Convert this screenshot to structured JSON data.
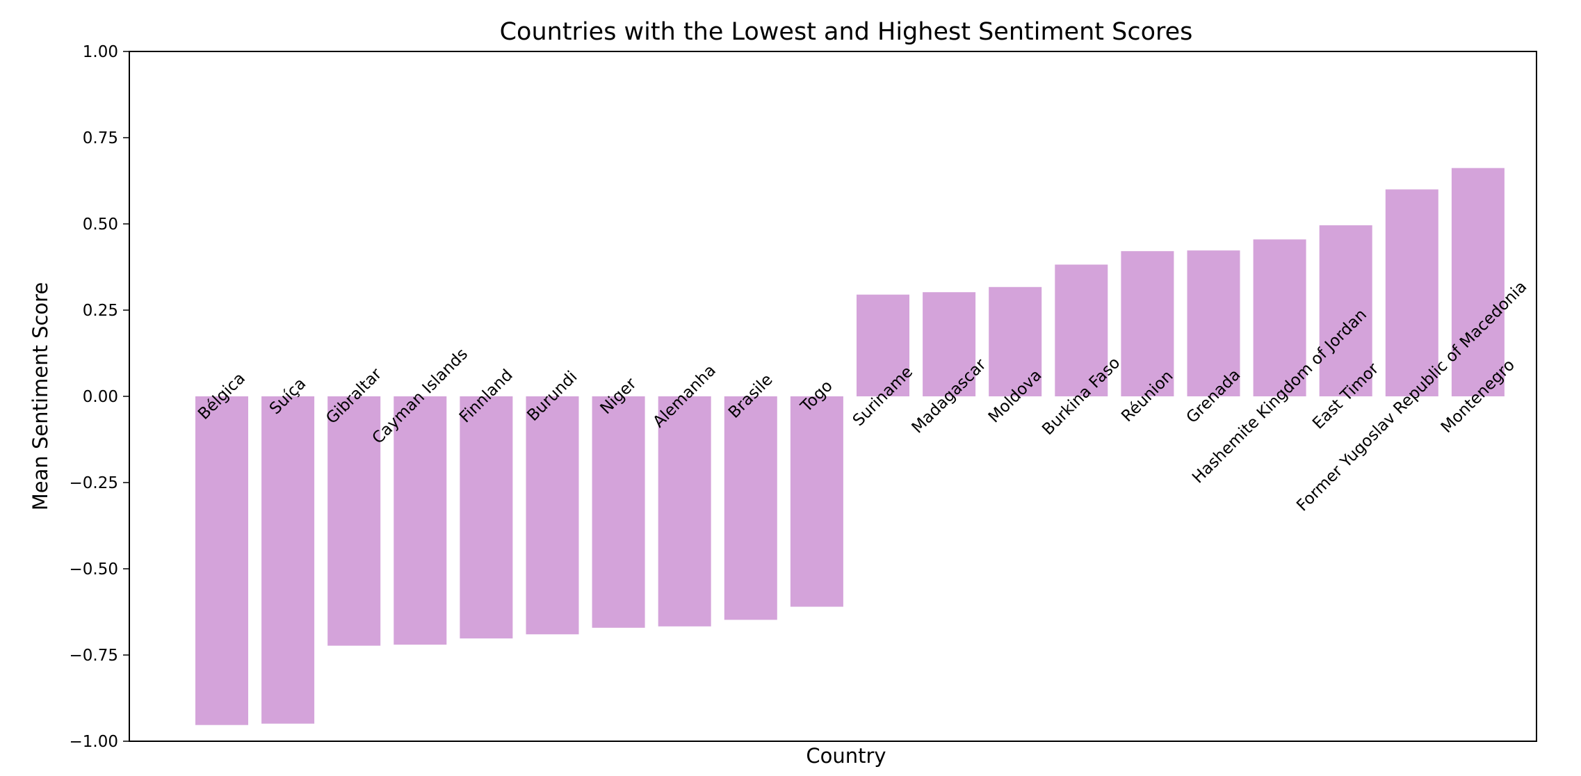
{
  "chart_data": {
    "type": "bar",
    "title": "Countries with the Lowest and Highest Sentiment Scores",
    "xlabel": "Country",
    "ylabel": "Mean Sentiment Score",
    "ylim": [
      -1.0,
      1.0
    ],
    "yticks": [
      "1.00",
      "0.75",
      "0.50",
      "0.25",
      "0.00",
      "−0.25",
      "−0.50",
      "−0.75",
      "−1.00"
    ],
    "ytick_values": [
      1.0,
      0.75,
      0.5,
      0.25,
      0.0,
      -0.25,
      -0.5,
      -0.75,
      -1.0
    ],
    "bar_color": "#d4a3da",
    "grid": false,
    "categories": [
      "Bélgica",
      "Suíça",
      "Gibraltar",
      "Cayman Islands",
      "Finnland",
      "Burundi",
      "Niger",
      "Alemanha",
      "Brasile",
      "Togo",
      "Suriname",
      "Madagascar",
      "Moldova",
      "Burkina Faso",
      "Réunion",
      "Grenada",
      "Hashemite Kingdom of Jordan",
      "East Timor",
      "Former Yugoslav Republic of Macedonia",
      "Montenegro"
    ],
    "values": [
      -0.953,
      -0.949,
      -0.723,
      -0.72,
      -0.702,
      -0.69,
      -0.671,
      -0.667,
      -0.648,
      -0.61,
      0.295,
      0.302,
      0.317,
      0.382,
      0.421,
      0.423,
      0.455,
      0.496,
      0.6,
      0.662
    ]
  }
}
